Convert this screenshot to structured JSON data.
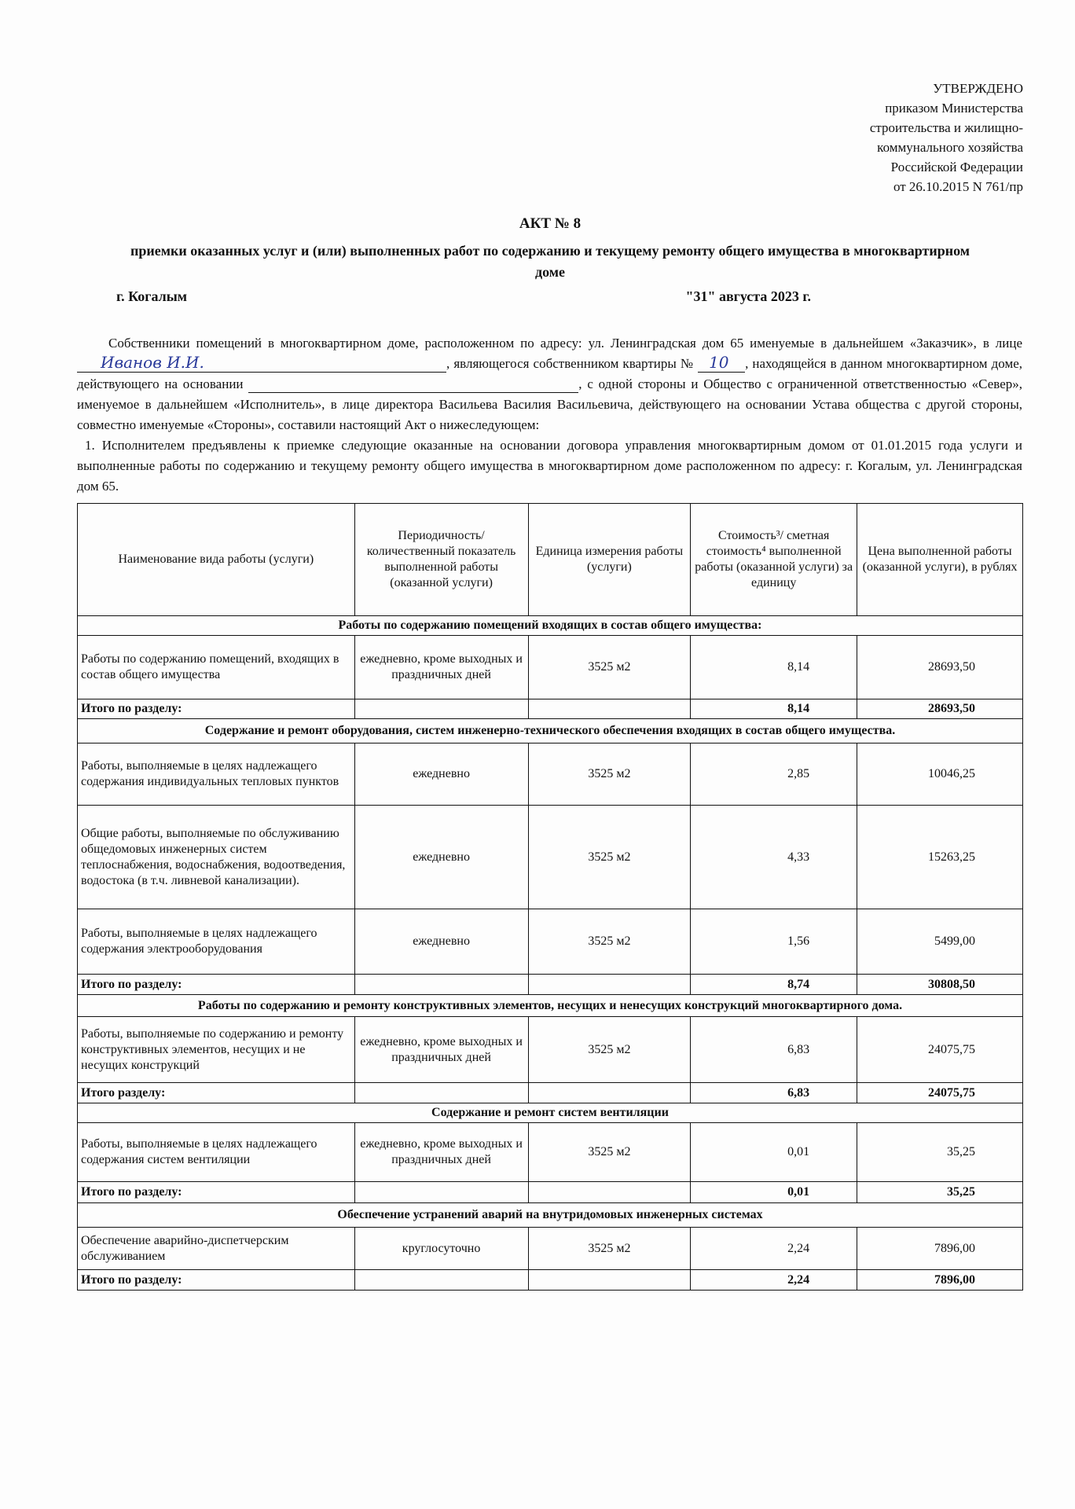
{
  "approval": {
    "lines": [
      "УТВЕРЖДЕНО",
      "приказом Министерства",
      "строительства и жилищно-",
      "коммунального хозяйства",
      "Российской Федерации",
      "от 26.10.2015 N 761/пр"
    ]
  },
  "title": "АКТ № 8",
  "subtitle": "приемки оказанных услуг и (или) выполненных работ по содержанию и текущему ремонту общего имущества в многоквартирном доме",
  "city": "г. Когалым",
  "date": "\"31\" августа 2023 г.",
  "intro": {
    "p1a": "Собственники помещений в многоквартирном доме, расположенном по адресу: ул. Ленинградская дом 65 именуемые в дальнейшем «Заказчик», в лице",
    "owner_name": "Иванов И.И.",
    "p1b": ", являющегося собственником квартиры №",
    "apartment": "10",
    "p1c": ", находящейся в данном многоквартирном доме, действующего на основании",
    "p1d": ", с одной стороны и Общество с ограниченной ответственностью «Север», именуемое в дальнейшем «Исполнитель», в лице директора Васильева Василия Васильевича, действующего на основании Устава общества с другой стороны, совместно именуемые «Стороны», составили настоящий Акт о нижеследующем:",
    "p2": "1. Исполнителем предъявлены к приемке следующие оказанные на основании договора управления многоквартирным домом от 01.01.2015 года услуги и выполненные работы по содержанию и текущему ремонту общего имущества в многоквартирном доме расположенном по адресу: г. Когалым, ул. Ленинградская дом 65."
  },
  "table": {
    "headers": [
      "Наименование вида работы (услуги)",
      "Периодичность/ количественный показатель выполненной работы (оказанной услуги)",
      "Единица измерения работы (услуги)",
      "Стоимость³/ сметная стоимость⁴ выполненной работы (оказанной услуги) за единицу",
      "Цена выполненной работы (оказанной услуги), в рублях"
    ],
    "sections": [
      {
        "title": "Работы по содержанию помещений входящих в состав общего имущества:",
        "rows": [
          [
            "Работы по содержанию помещений, входящих в состав общего имущества",
            "ежедневно, кроме выходных и праздничных дней",
            "3525 м2",
            "8,14",
            "28693,50"
          ]
        ],
        "total_label": "Итого по разделу:",
        "total_unit": "8,14",
        "total_price": "28693,50"
      },
      {
        "title": "Содержание и ремонт оборудования, систем инженерно-технического обеспечения входящих в состав общего имущества.",
        "rows": [
          [
            "Работы, выполняемые в целях надлежащего содержания индивидуальных тепловых пунктов",
            "ежедневно",
            "3525 м2",
            "2,85",
            "10046,25"
          ],
          [
            "Общие работы, выполняемые по обслуживанию общедомовых инженерных систем теплоснабжения, водоснабжения, водоотведения, водостока (в т.ч. ливневой канализации).",
            "ежедневно",
            "3525 м2",
            "4,33",
            "15263,25"
          ],
          [
            "Работы, выполняемые в целях надлежащего содержания электрооборудования",
            "ежедневно",
            "3525 м2",
            "1,56",
            "5499,00"
          ]
        ],
        "total_label": "Итого по разделу:",
        "total_unit": "8,74",
        "total_price": "30808,50"
      },
      {
        "title": "Работы по содержанию и ремонту конструктивных элементов, несущих и ненесущих конструкций многоквартирного дома.",
        "rows": [
          [
            "Работы, выполняемые по содержанию и ремонту конструктивных элементов, несущих и не несущих конструкций",
            "ежедневно, кроме выходных и праздничных дней",
            "3525 м2",
            "6,83",
            "24075,75"
          ]
        ],
        "total_label": "Итого разделу:",
        "total_unit": "6,83",
        "total_price": "24075,75"
      },
      {
        "title": "Содержание и ремонт систем вентиляции",
        "rows": [
          [
            "Работы, выполняемые в целях надлежащего содержания систем вентиляции",
            "ежедневно, кроме выходных и праздничных дней",
            "3525 м2",
            "0,01",
            "35,25"
          ]
        ],
        "total_label": "Итого по разделу:",
        "total_unit": "0,01",
        "total_price": "35,25"
      },
      {
        "title": "Обеспечение устранений аварий на внутридомовых инженерных системах",
        "rows": [
          [
            "Обеспечение аварийно-диспетчерским обслуживанием",
            "круглосуточно",
            "3525 м2",
            "2,24",
            "7896,00"
          ]
        ],
        "total_label": "Итого по разделу:",
        "total_unit": "2,24",
        "total_price": "7896,00"
      }
    ]
  }
}
